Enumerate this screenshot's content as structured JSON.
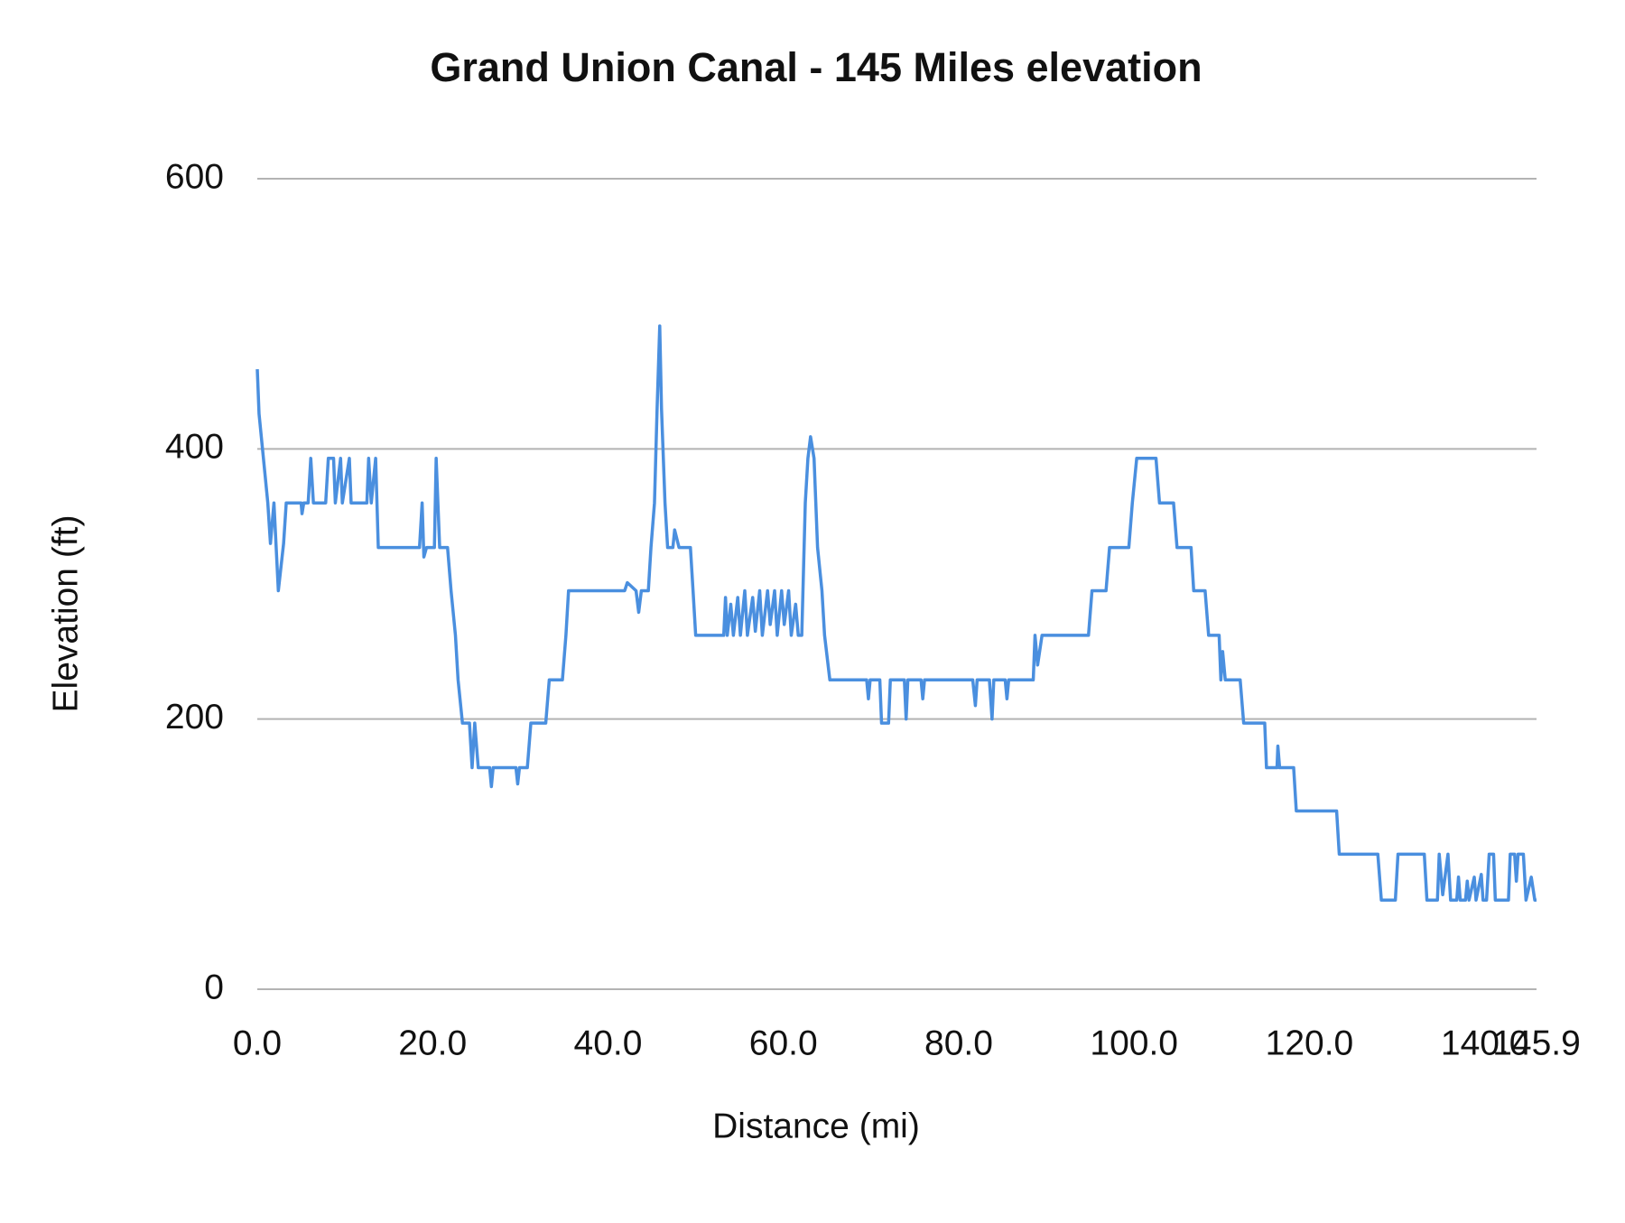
{
  "chart_data": {
    "type": "line",
    "title": "Grand Union Canal - 145 Miles elevation",
    "x_label": "Distance (mi)",
    "y_label": "Elevation (ft)",
    "color": "#4a8fdf",
    "grid": true,
    "xlim": [
      0,
      145.9
    ],
    "ylim": [
      0,
      600
    ],
    "xticks": [
      {
        "value": 0,
        "label": "0.0"
      },
      {
        "value": 20,
        "label": "20.0"
      },
      {
        "value": 40,
        "label": "40.0"
      },
      {
        "value": 60,
        "label": "60.0"
      },
      {
        "value": 80,
        "label": "80.0"
      },
      {
        "value": 100,
        "label": "100.0"
      },
      {
        "value": 120,
        "label": "120.0"
      },
      {
        "value": 140,
        "label": "140.0"
      },
      145.9
    ],
    "yticks": [
      0,
      200,
      400,
      600
    ],
    "x": [
      0,
      0.2,
      0.7,
      1.2,
      1.5,
      1.9,
      2.4,
      3.0,
      3.3,
      5.0,
      5.1,
      5.3,
      5.8,
      6.1,
      6.4,
      7.8,
      8.1,
      8.7,
      8.9,
      9.5,
      9.7,
      10.5,
      10.7,
      12.5,
      12.7,
      13.0,
      13.5,
      13.8,
      18.5,
      18.8,
      19.0,
      19.3,
      20.2,
      20.4,
      20.8,
      21.7,
      22.1,
      22.6,
      22.9,
      23.4,
      24.2,
      24.5,
      24.8,
      25.2,
      26.5,
      26.7,
      26.9,
      29.5,
      29.7,
      29.9,
      30.8,
      31.2,
      32.9,
      33.3,
      34.8,
      35.2,
      35.5,
      41.9,
      42.2,
      43.2,
      43.5,
      43.8,
      44.6,
      44.9,
      45.3,
      45.6,
      45.9,
      46.1,
      46.5,
      46.8,
      47.4,
      47.6,
      48.1,
      49.4,
      49.7,
      50.0,
      53.2,
      53.4,
      53.6,
      54.0,
      54.3,
      54.8,
      55.1,
      55.6,
      55.9,
      56.5,
      56.8,
      57.3,
      57.6,
      58.2,
      58.5,
      59.0,
      59.3,
      59.8,
      60.1,
      60.6,
      60.9,
      61.4,
      61.7,
      62.1,
      62.5,
      62.8,
      63.1,
      63.5,
      63.9,
      64.4,
      64.7,
      65.3,
      69.5,
      69.7,
      69.9,
      71.0,
      71.2,
      72.0,
      72.2,
      73.8,
      74.0,
      74.2,
      75.7,
      75.9,
      76.1,
      81.6,
      81.9,
      82.1,
      83.5,
      83.8,
      84.0,
      85.3,
      85.5,
      85.7,
      88.5,
      88.7,
      89.0,
      89.5,
      94.8,
      95.2,
      96.8,
      97.2,
      99.4,
      99.8,
      100.3,
      102.5,
      102.9,
      104.5,
      104.9,
      106.5,
      106.8,
      108.1,
      108.5,
      109.7,
      109.9,
      110.1,
      110.4,
      112.1,
      112.5,
      114.9,
      115.1,
      116.3,
      116.4,
      116.6,
      118.2,
      118.5,
      123.1,
      123.4,
      127.8,
      128.2,
      129.8,
      130.1,
      133.1,
      133.4,
      134.6,
      134.8,
      135.2,
      135.8,
      136.1,
      136.8,
      137.0,
      137.2,
      137.8,
      138.0,
      138.2,
      138.8,
      139.0,
      139.6,
      139.8,
      140.2,
      140.5,
      141.0,
      141.2,
      142.7,
      142.9,
      143.4,
      143.6,
      143.8,
      144.4,
      144.7,
      145.3,
      145.7,
      145.9
    ],
    "values": [
      459,
      426,
      393,
      360,
      330,
      360,
      295,
      330,
      360,
      360,
      352,
      360,
      360,
      393,
      360,
      360,
      393,
      393,
      360,
      393,
      360,
      393,
      360,
      360,
      393,
      360,
      393,
      327,
      327,
      360,
      320,
      327,
      327,
      393,
      327,
      327,
      295,
      262,
      229,
      197,
      197,
      164,
      197,
      164,
      164,
      150,
      164,
      164,
      152,
      164,
      164,
      197,
      197,
      229,
      229,
      262,
      295,
      295,
      301,
      295,
      279,
      295,
      295,
      327,
      360,
      430,
      491,
      430,
      360,
      327,
      327,
      340,
      327,
      327,
      295,
      262,
      262,
      290,
      262,
      285,
      262,
      290,
      262,
      295,
      262,
      290,
      265,
      295,
      262,
      295,
      270,
      295,
      262,
      295,
      270,
      295,
      262,
      285,
      262,
      262,
      360,
      393,
      409,
      393,
      327,
      295,
      262,
      229,
      229,
      215,
      229,
      229,
      197,
      197,
      229,
      229,
      200,
      229,
      229,
      215,
      229,
      229,
      210,
      229,
      229,
      200,
      229,
      229,
      215,
      229,
      229,
      262,
      240,
      262,
      262,
      295,
      295,
      327,
      327,
      360,
      393,
      393,
      360,
      360,
      327,
      327,
      295,
      295,
      262,
      262,
      229,
      250,
      229,
      229,
      197,
      197,
      164,
      164,
      180,
      164,
      164,
      132,
      132,
      100,
      100,
      66,
      66,
      100,
      100,
      66,
      66,
      100,
      70,
      100,
      66,
      66,
      83,
      66,
      66,
      80,
      66,
      83,
      66,
      85,
      66,
      66,
      100,
      100,
      66,
      66,
      100,
      100,
      80,
      100,
      100,
      66,
      83,
      66,
      66
    ]
  }
}
